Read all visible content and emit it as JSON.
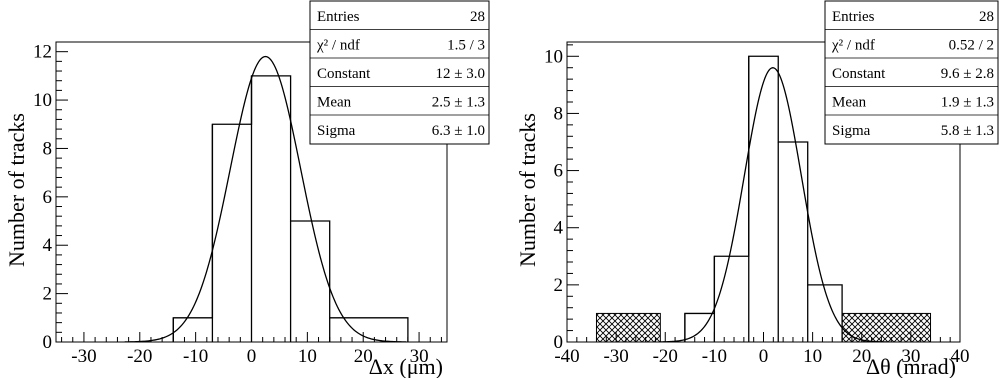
{
  "chart_data": [
    {
      "type": "histogram",
      "xlabel": "Δx (μm)",
      "ylabel": "Number of tracks",
      "xlim": [
        -35,
        35
      ],
      "ylim": [
        0,
        12.4
      ],
      "xticks": [
        -30,
        -20,
        -10,
        0,
        10,
        20,
        30
      ],
      "yticks": [
        0,
        2,
        4,
        6,
        8,
        10,
        12
      ],
      "bins": [
        {
          "x0": -14,
          "x1": -7,
          "value": 1
        },
        {
          "x0": -7,
          "x1": 0,
          "value": 9
        },
        {
          "x0": 0,
          "x1": 7,
          "value": 11
        },
        {
          "x0": 7,
          "x1": 14,
          "value": 5
        },
        {
          "x0": 14,
          "x1": 28,
          "value": 1
        }
      ],
      "fit": {
        "type": "gaussian",
        "constant": 11.8,
        "mean": 2.5,
        "sigma": 6.3
      },
      "stats": [
        {
          "label": "Entries",
          "value": "28"
        },
        {
          "label": "χ² / ndf",
          "value": "1.5 / 3"
        },
        {
          "label": "Constant",
          "value": "12 ± 3.0"
        },
        {
          "label": "Mean",
          "value": "2.5 ± 1.3"
        },
        {
          "label": "Sigma",
          "value": "6.3 ± 1.0"
        }
      ]
    },
    {
      "type": "histogram",
      "xlabel": "Δθ (mrad)",
      "ylabel": "Number of tracks",
      "xlim": [
        -40,
        40
      ],
      "ylim": [
        0,
        10.5
      ],
      "xticks": [
        -40,
        -30,
        -20,
        -10,
        0,
        10,
        20,
        30,
        40
      ],
      "yticks": [
        0,
        2,
        4,
        6,
        8,
        10
      ],
      "bins": [
        {
          "x0": -16,
          "x1": -10,
          "value": 1
        },
        {
          "x0": -10,
          "x1": -3,
          "value": 3
        },
        {
          "x0": -3,
          "x1": 3,
          "value": 10
        },
        {
          "x0": 3,
          "x1": 9,
          "value": 7
        },
        {
          "x0": 9,
          "x1": 16,
          "value": 2
        }
      ],
      "hatched_bins": [
        {
          "x0": -34,
          "x1": -21,
          "value": 1
        },
        {
          "x0": 16,
          "x1": 34,
          "value": 1
        }
      ],
      "fit": {
        "type": "gaussian",
        "constant": 9.6,
        "mean": 1.9,
        "sigma": 5.8
      },
      "stats": [
        {
          "label": "Entries",
          "value": "28"
        },
        {
          "label": "χ² / ndf",
          "value": "0.52 / 2"
        },
        {
          "label": "Constant",
          "value": "9.6 ± 2.8"
        },
        {
          "label": "Mean",
          "value": "1.9 ± 1.3"
        },
        {
          "label": "Sigma",
          "value": "5.8 ± 1.3"
        }
      ]
    }
  ]
}
